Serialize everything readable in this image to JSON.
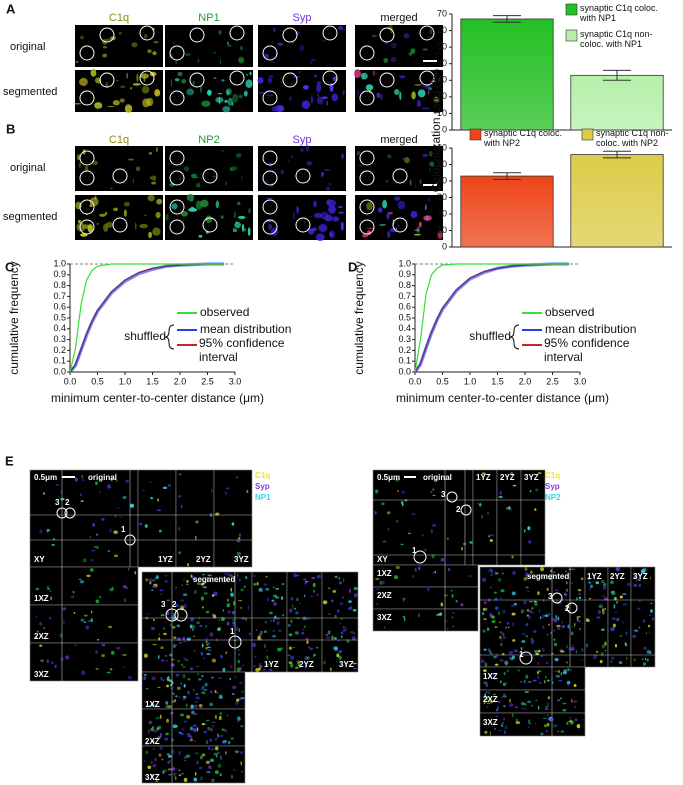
{
  "panel_labels": [
    "A",
    "B",
    "C",
    "D",
    "E"
  ],
  "panel_a": {
    "columns": [
      "C1q",
      "NP1",
      "Syp",
      "merged"
    ],
    "rows": [
      "original",
      "segmented"
    ]
  },
  "panel_b": {
    "columns": [
      "C1q",
      "NP2",
      "Syp",
      "merged"
    ],
    "rows": [
      "original",
      "segmented"
    ]
  },
  "panel_e": {
    "left": {
      "scale": "0.5μm",
      "original": "original",
      "segmented": "segmented",
      "channels": [
        "C1q",
        "Syp",
        "NP1"
      ],
      "views": [
        "XY",
        "1YZ",
        "2YZ",
        "3YZ",
        "1XZ",
        "2XZ",
        "3XZ"
      ],
      "seg_views": [
        "1YZ",
        "2YZ",
        "3YZ",
        "1XZ",
        "2XZ",
        "3XZ"
      ],
      "markers": [
        "3",
        "2",
        "1"
      ],
      "seg_markers": [
        "3",
        "2",
        "1"
      ]
    },
    "right": {
      "scale": "0.5μm",
      "original": "original",
      "segmented": "segmented",
      "channels": [
        "C1q",
        "Syp",
        "NP2"
      ],
      "views": [
        "XY",
        "1YZ",
        "2YZ",
        "3YZ",
        "1XZ",
        "2XZ",
        "3XZ"
      ],
      "seg_views": [
        "1YZ",
        "2YZ",
        "3YZ",
        "1XZ",
        "2XZ",
        "3XZ"
      ],
      "markers": [
        "3",
        "2",
        "1"
      ],
      "seg_markers": [
        "3",
        "2",
        "1"
      ]
    }
  },
  "chart_data": [
    {
      "type": "bar",
      "ylabel": "Colocalization ratio (%)",
      "categories": [
        null,
        null
      ],
      "values": [
        67,
        33
      ],
      "errors": [
        2,
        3
      ],
      "colors": [
        "#22c022",
        "#b4f0a8"
      ],
      "legend": [
        "synaptic C1q coloc. with NP1",
        "synaptic C1q non-coloc. with NP1"
      ],
      "ylim": [
        0,
        70
      ],
      "yticks": [
        0,
        10,
        20,
        30,
        40,
        50,
        60,
        70
      ]
    },
    {
      "type": "bar",
      "categories": [
        null,
        null
      ],
      "values": [
        43,
        56
      ],
      "errors": [
        2,
        2
      ],
      "colors": [
        "#ee4418",
        "#dccc48"
      ],
      "legend": [
        "synaptic C1q coloc. with NP2",
        "synaptic C1q non-coloc. with NP2"
      ],
      "ylim": [
        0,
        60
      ],
      "yticks": [
        0,
        10,
        20,
        30,
        40,
        50,
        60
      ]
    },
    {
      "type": "line",
      "xlabel": "minimum center-to-center distance (μm)",
      "ylabel": "cumulative frequency",
      "annotation": "shuffled",
      "x": [
        0,
        0.1,
        0.2,
        0.3,
        0.4,
        0.5,
        0.75,
        1.0,
        1.25,
        1.5,
        1.75,
        2.0,
        2.5,
        2.8
      ],
      "series": [
        {
          "name": "observed",
          "color": "#33e033",
          "values": [
            0,
            0.22,
            0.62,
            0.85,
            0.94,
            0.98,
            1.0,
            1.0,
            1.0,
            1.0,
            1.0,
            1.0,
            1.0,
            1.0
          ]
        },
        {
          "name": "mean distribution",
          "color": "#2244dd",
          "values": [
            0,
            0.06,
            0.2,
            0.34,
            0.46,
            0.56,
            0.73,
            0.84,
            0.91,
            0.95,
            0.98,
            0.99,
            1.0,
            1.0
          ]
        },
        {
          "name": "95% confidence interval",
          "color": "#cc2222",
          "values": [
            0,
            0.07,
            0.21,
            0.35,
            0.47,
            0.57,
            0.74,
            0.85,
            0.92,
            0.96,
            0.98,
            0.99,
            1.0,
            1.0
          ]
        }
      ],
      "hline": 1,
      "xlim": [
        0,
        3
      ],
      "xticks": [
        {
          "value": 0,
          "label": "0.0"
        },
        0.5,
        {
          "value": 1,
          "label": "1.0"
        },
        1.5,
        {
          "value": 2,
          "label": "2.0"
        },
        2.5,
        {
          "value": 3,
          "label": "3.0"
        }
      ],
      "ylim": [
        0,
        1
      ],
      "yticks": [
        {
          "value": 0,
          "label": "0.0"
        },
        0.1,
        0.2,
        0.3,
        0.4,
        0.5,
        0.6,
        0.7,
        0.8,
        0.9,
        {
          "value": 1,
          "label": "1.0"
        }
      ]
    },
    {
      "type": "line",
      "xlabel": "minimum center-to-center distance (μm)",
      "ylabel": "cumulative frequency",
      "annotation": "shuffled",
      "x": [
        0,
        0.1,
        0.2,
        0.3,
        0.4,
        0.5,
        0.75,
        1.0,
        1.25,
        1.5,
        1.75,
        2.0,
        2.5,
        2.8
      ],
      "series": [
        {
          "name": "observed",
          "color": "#33e033",
          "values": [
            0,
            0.3,
            0.72,
            0.9,
            0.96,
            0.99,
            1.0,
            1.0,
            1.0,
            1.0,
            1.0,
            1.0,
            1.0,
            1.0
          ]
        },
        {
          "name": "mean distribution",
          "color": "#2244dd",
          "values": [
            0,
            0.07,
            0.22,
            0.36,
            0.48,
            0.58,
            0.75,
            0.86,
            0.92,
            0.96,
            0.98,
            0.99,
            1.0,
            1.0
          ]
        },
        {
          "name": "95% confidence interval",
          "color": "#cc2222",
          "values": [
            0,
            0.08,
            0.23,
            0.37,
            0.49,
            0.59,
            0.76,
            0.87,
            0.93,
            0.96,
            0.98,
            0.99,
            1.0,
            1.0
          ]
        }
      ],
      "hline": 1,
      "xlim": [
        0,
        3
      ],
      "xticks": [
        {
          "value": 0,
          "label": "0.0"
        },
        0.5,
        {
          "value": 1,
          "label": "1.0"
        },
        1.5,
        {
          "value": 2,
          "label": "2.0"
        },
        2.5,
        {
          "value": 3,
          "label": "3.0"
        }
      ],
      "ylim": [
        0,
        1
      ],
      "yticks": [
        {
          "value": 0,
          "label": "0.0"
        },
        0.1,
        0.2,
        0.3,
        0.4,
        0.5,
        0.6,
        0.7,
        0.8,
        0.9,
        {
          "value": 1,
          "label": "1.0"
        }
      ]
    }
  ]
}
